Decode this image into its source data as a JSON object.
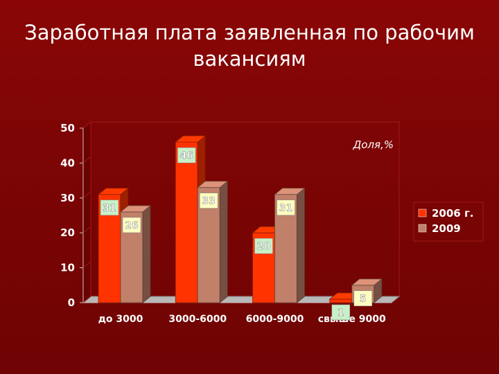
{
  "title": "Заработная плата заявленная по рабочим вакансиям",
  "chart_data": {
    "type": "bar",
    "title": "",
    "annotation": "Доля,%",
    "categories": [
      "до 3000",
      "3000-6000",
      "6000-9000",
      "свыше 9000"
    ],
    "series": [
      {
        "name": "2006 г.",
        "values": [
          31,
          46,
          20,
          1
        ],
        "color": "#ff3300"
      },
      {
        "name": "2009",
        "values": [
          26,
          33,
          31,
          5
        ],
        "color": "#c0806a"
      }
    ],
    "ylim": [
      0,
      50
    ],
    "yticks": [
      0,
      10,
      20,
      30,
      40,
      50
    ],
    "grid": false,
    "legend": "right",
    "style": "3d-bar"
  }
}
